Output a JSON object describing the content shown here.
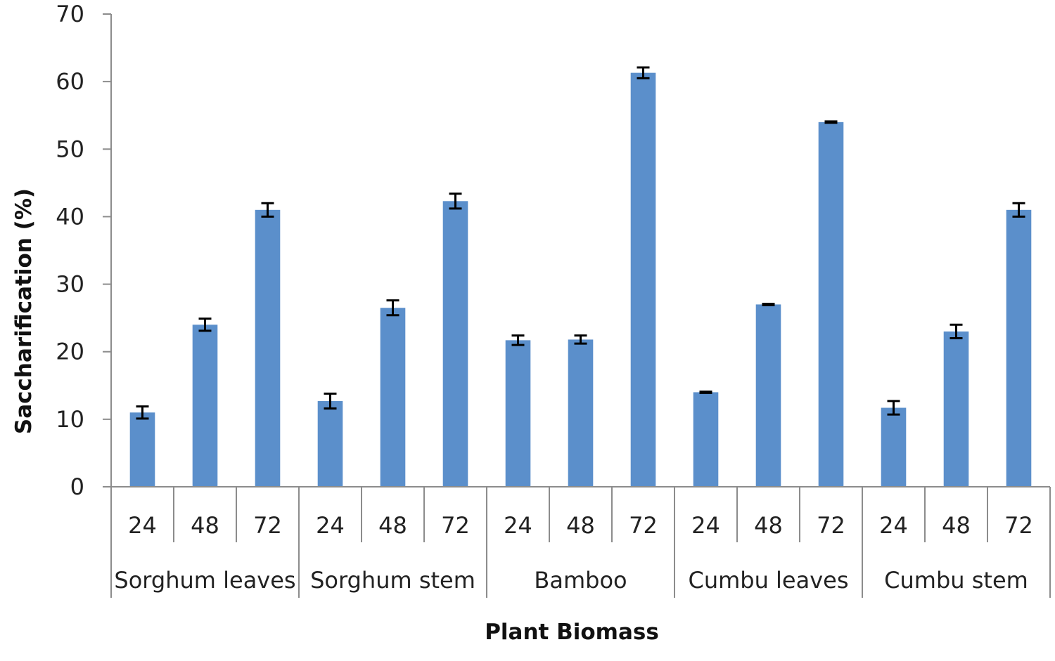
{
  "chart_data": {
    "type": "bar",
    "title": "",
    "xlabel": "Plant Biomass",
    "ylabel": "Saccharification (%)",
    "ylim": [
      0,
      70
    ],
    "yticks": [
      0,
      10,
      20,
      30,
      40,
      50,
      60,
      70
    ],
    "grid": false,
    "legend": "none",
    "bar_color": "#5b8fcb",
    "error_color": "#000000",
    "groups": [
      {
        "label": "Sorghum leaves",
        "times": [
          "24",
          "48",
          "72"
        ],
        "values": [
          11.0,
          24.0,
          41.0
        ],
        "errors": [
          0.9,
          0.9,
          1.0
        ]
      },
      {
        "label": "Sorghum stem",
        "times": [
          "24",
          "48",
          "72"
        ],
        "values": [
          12.7,
          26.5,
          42.3
        ],
        "errors": [
          1.1,
          1.1,
          1.1
        ]
      },
      {
        "label": "Bamboo",
        "times": [
          "24",
          "48",
          "72"
        ],
        "values": [
          21.7,
          21.8,
          61.3
        ],
        "errors": [
          0.7,
          0.6,
          0.8
        ]
      },
      {
        "label": "Cumbu leaves",
        "times": [
          "24",
          "48",
          "72"
        ],
        "values": [
          14.0,
          27.0,
          54.0
        ],
        "errors": [
          0.1,
          0.1,
          0.1
        ]
      },
      {
        "label": "Cumbu stem",
        "times": [
          "24",
          "48",
          "72"
        ],
        "values": [
          11.7,
          23.0,
          41.0
        ],
        "errors": [
          1.0,
          1.0,
          1.0
        ]
      }
    ]
  }
}
